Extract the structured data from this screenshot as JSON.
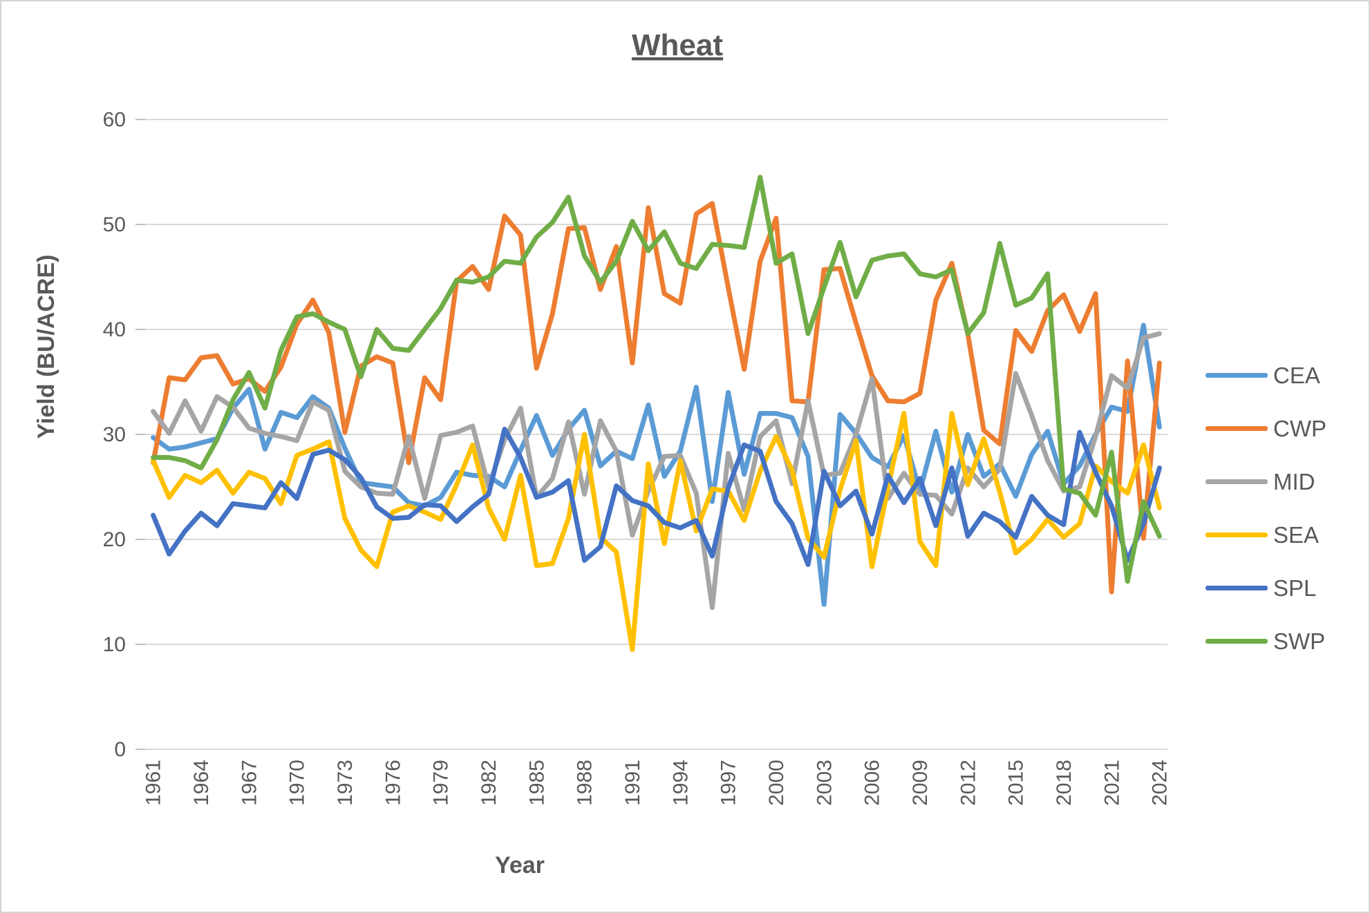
{
  "chart_data": {
    "type": "line",
    "title": "Wheat",
    "xlabel": "Year",
    "ylabel": "Yield (BU/ACRE)",
    "ylim": [
      0,
      60
    ],
    "y_ticks": [
      0,
      10,
      20,
      30,
      40,
      50,
      60
    ],
    "x_tick_years": [
      1961,
      1964,
      1967,
      1970,
      1973,
      1976,
      1979,
      1982,
      1985,
      1988,
      1991,
      1994,
      1997,
      2000,
      2003,
      2006,
      2009,
      2012,
      2015,
      2018,
      2021,
      2024
    ],
    "grid": "horizontal",
    "legend_position": "right",
    "x": [
      1961,
      1962,
      1963,
      1964,
      1965,
      1966,
      1967,
      1968,
      1969,
      1970,
      1971,
      1972,
      1973,
      1974,
      1975,
      1976,
      1977,
      1978,
      1979,
      1980,
      1981,
      1982,
      1983,
      1984,
      1985,
      1986,
      1987,
      1988,
      1989,
      1990,
      1991,
      1992,
      1993,
      1994,
      1995,
      1996,
      1997,
      1998,
      1999,
      2000,
      2001,
      2002,
      2003,
      2004,
      2005,
      2006,
      2007,
      2008,
      2009,
      2010,
      2011,
      2012,
      2013,
      2014,
      2015,
      2016,
      2017,
      2018,
      2019,
      2020,
      2021,
      2022,
      2023,
      2024
    ],
    "series": [
      {
        "name": "CEA",
        "color": "#5B9BD5",
        "values": [
          29.7,
          28.6,
          28.8,
          29.2,
          29.6,
          32.5,
          34.3,
          28.6,
          32.1,
          31.6,
          33.6,
          32.5,
          28.7,
          25.4,
          25.2,
          25.0,
          23.5,
          23.2,
          24.0,
          26.4,
          26.1,
          26.0,
          25.0,
          28.5,
          31.8,
          28.0,
          30.5,
          32.3,
          27.0,
          28.4,
          27.7,
          32.8,
          26.0,
          28.4,
          34.5,
          23.6,
          34.0,
          26.2,
          32.0,
          32.0,
          31.6,
          27.9,
          13.8,
          31.9,
          30.1,
          27.8,
          26.9,
          29.9,
          24.6,
          30.3,
          24.5,
          30.0,
          26.0,
          27.2,
          24.1,
          28.1,
          30.3,
          25.3,
          27.0,
          30.0,
          32.6,
          32.2,
          40.4,
          30.7
        ]
      },
      {
        "name": "CWP",
        "color": "#ED7D31",
        "values": [
          27.3,
          35.4,
          35.2,
          37.3,
          37.5,
          34.8,
          35.3,
          34.1,
          36.4,
          40.5,
          42.8,
          39.7,
          30.2,
          36.5,
          37.4,
          36.8,
          27.3,
          35.4,
          33.3,
          44.6,
          46.0,
          43.8,
          50.8,
          49.0,
          36.3,
          41.5,
          49.6,
          49.7,
          43.8,
          47.9,
          36.8,
          51.6,
          43.4,
          42.5,
          51.0,
          52.0,
          44.0,
          36.2,
          46.5,
          50.6,
          33.2,
          33.1,
          45.7,
          45.8,
          40.6,
          35.6,
          33.2,
          33.1,
          33.9,
          42.8,
          46.3,
          39.6,
          30.4,
          29.1,
          39.9,
          37.9,
          41.8,
          43.3,
          39.8,
          43.4,
          15.0,
          37.0,
          20.1,
          36.8
        ]
      },
      {
        "name": "MID",
        "color": "#A5A5A5",
        "values": [
          32.2,
          30.1,
          33.2,
          30.3,
          33.6,
          32.6,
          30.6,
          30.1,
          29.8,
          29.4,
          33.1,
          32.3,
          26.5,
          25.0,
          24.4,
          24.3,
          29.8,
          23.9,
          29.9,
          30.2,
          30.8,
          25.0,
          29.5,
          32.5,
          24.0,
          25.8,
          31.2,
          24.3,
          31.3,
          28.4,
          20.4,
          24.6,
          27.9,
          28.0,
          24.4,
          13.5,
          28.2,
          22.8,
          29.8,
          31.3,
          25.3,
          33.2,
          26.1,
          26.3,
          30.0,
          35.3,
          23.9,
          26.3,
          24.3,
          24.2,
          22.4,
          26.8,
          25.0,
          26.7,
          35.8,
          31.8,
          27.5,
          24.6,
          25.0,
          29.8,
          35.6,
          34.4,
          39.2,
          39.6
        ]
      },
      {
        "name": "SEA",
        "color": "#FFC000",
        "values": [
          27.5,
          24.0,
          26.1,
          25.4,
          26.6,
          24.4,
          26.4,
          25.8,
          23.4,
          28.0,
          28.6,
          29.3,
          22.0,
          19.0,
          17.4,
          22.6,
          23.2,
          22.6,
          21.9,
          25.2,
          29.0,
          23.0,
          20.0,
          26.1,
          17.5,
          17.7,
          22.0,
          30.0,
          20.2,
          18.8,
          9.5,
          27.2,
          19.6,
          27.5,
          20.8,
          24.8,
          24.6,
          21.8,
          26.5,
          29.8,
          26.6,
          20.1,
          18.3,
          24.7,
          29.4,
          17.4,
          24.9,
          32.0,
          19.8,
          17.5,
          32.0,
          25.2,
          29.6,
          24.5,
          18.7,
          20.0,
          21.9,
          20.2,
          21.5,
          27.0,
          25.5,
          24.4,
          29.0,
          23.0
        ]
      },
      {
        "name": "SPL",
        "color": "#4472C4",
        "values": [
          22.3,
          18.6,
          20.8,
          22.5,
          21.3,
          23.4,
          23.2,
          23.0,
          25.4,
          23.9,
          28.1,
          28.5,
          27.6,
          25.9,
          23.1,
          22.0,
          22.1,
          23.3,
          23.2,
          21.7,
          23.1,
          24.3,
          30.5,
          27.8,
          24.0,
          24.5,
          25.6,
          18.0,
          19.3,
          25.1,
          23.7,
          23.2,
          21.6,
          21.1,
          21.8,
          18.4,
          24.9,
          29.0,
          28.4,
          23.6,
          21.5,
          17.6,
          26.5,
          23.2,
          24.6,
          20.5,
          26.1,
          23.5,
          25.8,
          21.3,
          26.8,
          20.3,
          22.5,
          21.7,
          20.2,
          24.1,
          22.3,
          21.4,
          30.2,
          26.4,
          23.2,
          18.0,
          21.5,
          26.8
        ]
      },
      {
        "name": "SWP",
        "color": "#70AD47",
        "values": [
          27.8,
          27.8,
          27.5,
          26.8,
          29.5,
          33.3,
          35.9,
          32.5,
          38.0,
          41.2,
          41.5,
          40.7,
          40.0,
          35.5,
          40.0,
          38.2,
          38.0,
          40.0,
          42.0,
          44.7,
          44.5,
          45.0,
          46.5,
          46.3,
          48.8,
          50.2,
          52.6,
          47.0,
          44.5,
          46.5,
          50.3,
          47.5,
          49.3,
          46.3,
          45.8,
          48.1,
          48.0,
          47.8,
          54.5,
          46.3,
          47.2,
          39.6,
          44.0,
          48.3,
          43.1,
          46.6,
          47.0,
          47.2,
          45.3,
          45.0,
          45.7,
          39.6,
          41.6,
          48.2,
          42.3,
          43.0,
          45.3,
          24.8,
          24.4,
          22.3,
          28.3,
          16.0,
          23.6,
          20.3
        ]
      }
    ],
    "grid_color": "#D9D9D9",
    "tick_color": "#BFBFBF",
    "text_color": "#595959"
  }
}
